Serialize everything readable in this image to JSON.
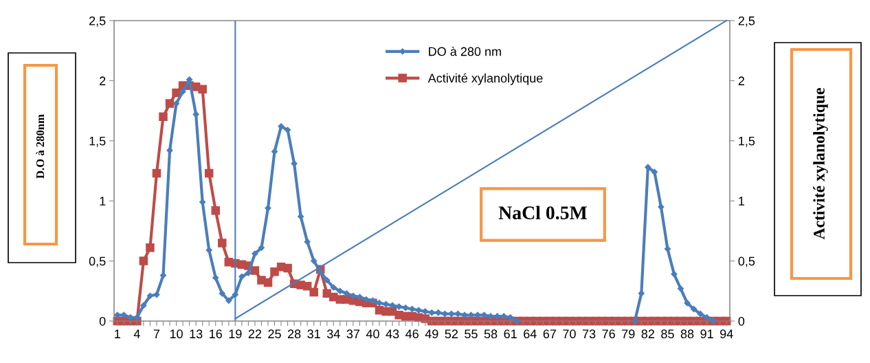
{
  "chart_data": {
    "type": "line",
    "categories": [
      "1",
      null,
      null,
      "4",
      null,
      null,
      "7",
      null,
      null,
      "10",
      null,
      null,
      "13",
      null,
      null,
      "16",
      null,
      null,
      "19",
      null,
      null,
      "22",
      null,
      null,
      "25",
      null,
      null,
      "28",
      null,
      null,
      "31",
      null,
      null,
      "34",
      null,
      null,
      "37",
      null,
      null,
      "40",
      null,
      null,
      "43",
      null,
      null,
      "46",
      null,
      null,
      "49",
      null,
      null,
      "52",
      null,
      null,
      "55",
      null,
      null,
      "58",
      null,
      null,
      "61",
      null,
      null,
      "64",
      null,
      null,
      "67",
      null,
      null,
      "70",
      null,
      null,
      "73",
      null,
      null,
      "76",
      null,
      null,
      "79",
      null,
      null,
      "82",
      null,
      null,
      "85",
      null,
      null,
      "88",
      null,
      null,
      "91",
      null,
      null,
      "94"
    ],
    "series": [
      {
        "name": "DO à 280 nm",
        "color": "#4a7ebb",
        "marker": "diamond",
        "values": [
          0.05,
          0.05,
          0.03,
          0.03,
          0.13,
          0.21,
          0.22,
          0.38,
          1.42,
          1.81,
          1.91,
          2.01,
          1.72,
          0.99,
          0.59,
          0.36,
          0.23,
          0.17,
          0.22,
          0.37,
          0.4,
          0.56,
          0.61,
          0.94,
          1.41,
          1.62,
          1.59,
          1.31,
          0.87,
          0.66,
          0.5,
          0.41,
          0.34,
          0.28,
          0.25,
          0.23,
          0.21,
          0.2,
          0.18,
          0.17,
          0.15,
          0.14,
          0.13,
          0.12,
          0.11,
          0.1,
          0.09,
          0.08,
          0.07,
          0.07,
          0.06,
          0.06,
          0.06,
          0.05,
          0.05,
          0.05,
          0.05,
          0.04,
          0.04,
          0.04,
          0.03,
          0,
          null,
          null,
          null,
          null,
          null,
          null,
          null,
          null,
          null,
          null,
          null,
          null,
          null,
          null,
          null,
          null,
          null,
          0,
          0.23,
          1.28,
          1.24,
          0.95,
          0.6,
          0.39,
          0.27,
          0.15,
          0.1,
          0.06,
          0.03,
          0,
          null,
          null
        ]
      },
      {
        "name": "Activité xylanolytique",
        "color": "#be4b48",
        "marker": "square",
        "axis": "y2",
        "values": [
          0,
          0,
          0,
          0,
          0.5,
          0.61,
          1.23,
          1.7,
          1.81,
          1.9,
          1.96,
          1.96,
          1.95,
          1.93,
          1.23,
          0.92,
          0.65,
          0.49,
          0.48,
          0.47,
          0.46,
          0.42,
          0.34,
          0.32,
          0.41,
          0.45,
          0.44,
          0.31,
          0.3,
          0.29,
          0.24,
          0.43,
          0.23,
          0.2,
          0.18,
          0.18,
          0.17,
          0.16,
          0.15,
          0.15,
          0.09,
          0.08,
          0.08,
          0.05,
          0.04,
          0.04,
          0.03,
          0.02,
          0,
          0,
          0,
          0,
          0,
          0,
          0,
          0,
          0,
          0,
          0,
          0,
          0,
          0,
          0,
          0,
          0,
          0,
          0,
          0,
          0,
          0,
          0,
          0,
          0,
          0,
          0,
          0,
          0,
          0,
          0,
          0,
          0,
          0,
          0,
          0,
          0,
          0,
          0,
          0,
          0,
          0,
          0,
          0,
          0,
          0
        ]
      },
      {
        "color": "#4a7ebb",
        "marker": "none",
        "x": [
          "19",
          "94"
        ],
        "values": [
          0.02,
          2.5
        ]
      }
    ],
    "ylabel": "D.O à 280nm",
    "y2label": "Activité xylanolytique",
    "ylim": [
      0,
      2.5
    ],
    "yticks": [
      0,
      {
        "value": 0.5,
        "label": "0,5"
      },
      1,
      {
        "value": 1.5,
        "label": "1,5"
      },
      2,
      {
        "value": 2.5,
        "label": "2,5"
      }
    ],
    "y2lim": [
      0,
      2.5
    ],
    "y2ticks": [
      0,
      {
        "value": 0.5,
        "label": "0,5"
      },
      1,
      {
        "value": 1.5,
        "label": "1,5"
      },
      2,
      {
        "value": 2.5,
        "label": "2,5"
      }
    ],
    "ref_lines": [
      {
        "axis": "x",
        "value": "19",
        "color": "#4a7ebb"
      }
    ],
    "annotations": [
      "NaCl 0.5M"
    ],
    "legend": "top",
    "grid": false
  }
}
